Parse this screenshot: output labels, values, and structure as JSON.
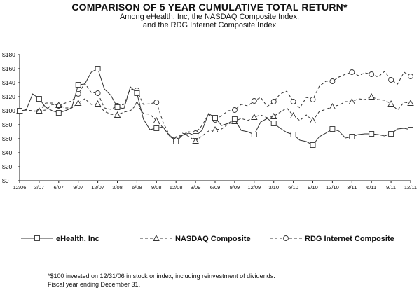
{
  "title": "COMPARISON OF 5 YEAR CUMULATIVE TOTAL RETURN*",
  "subtitle_line1": "Among eHealth, Inc, the NASDAQ Composite Index,",
  "subtitle_line2": "and the RDG Internet Composite Index",
  "footnote_line1": "*$100 invested on 12/31/06 in stock or index, including reinvestment of dividends.",
  "footnote_line2": "Fiscal year ending December 31.",
  "chart_data": {
    "type": "line",
    "title": "COMPARISON OF 5 YEAR CUMULATIVE TOTAL RETURN*",
    "xlabel": "",
    "ylabel": "",
    "ylim": [
      0,
      180
    ],
    "y_ticks": [
      "$0",
      "$20",
      "$40",
      "$60",
      "$80",
      "$100",
      "$120",
      "$140",
      "$160",
      "$180"
    ],
    "x_ticks": [
      "12/06",
      "3/07",
      "6/07",
      "9/07",
      "12/07",
      "3/08",
      "6/08",
      "9/08",
      "12/08",
      "3/09",
      "6/09",
      "9/09",
      "12/09",
      "3/10",
      "6/10",
      "9/10",
      "12/10",
      "3/11",
      "6/11",
      "9/11",
      "12/11"
    ],
    "grid": false,
    "legend_position": "bottom",
    "months": 60,
    "series": [
      {
        "name": "eHealth, Inc",
        "style": "solid",
        "marker": "square",
        "values": [
          100,
          101,
          124,
          117,
          105,
          100,
          97,
          100,
          104,
          137,
          138,
          155,
          160,
          131,
          122,
          105,
          103,
          134,
          125,
          88,
          73,
          75,
          77,
          64,
          56,
          65,
          68,
          64,
          72,
          96,
          90,
          79,
          82,
          88,
          72,
          70,
          66,
          84,
          89,
          82,
          75,
          69,
          66,
          58,
          56,
          51,
          63,
          68,
          74,
          71,
          61,
          63,
          66,
          67,
          67,
          66,
          64,
          67,
          74,
          75,
          73
        ]
      },
      {
        "name": "NASDAQ Composite",
        "style": "dashed",
        "marker": "triangle",
        "values": [
          100,
          102,
          99,
          100,
          101,
          109,
          108,
          104,
          104,
          111,
          117,
          109,
          110,
          99,
          95,
          94,
          98,
          100,
          109,
          96,
          95,
          86,
          76,
          65,
          59,
          68,
          63,
          57,
          64,
          71,
          73,
          74,
          81,
          85,
          89,
          86,
          91,
          94,
          90,
          92,
          98,
          104,
          93,
          86,
          94,
          86,
          99,
          102,
          106,
          108,
          113,
          113,
          117,
          116,
          120,
          116,
          115,
          110,
          101,
          112,
          111
        ]
      },
      {
        "name": "RDG Internet Composite",
        "style": "dashed",
        "marker": "circle",
        "values": [
          100,
          101,
          100,
          99,
          111,
          111,
          107,
          111,
          114,
          124,
          139,
          126,
          125,
          104,
          102,
          107,
          109,
          131,
          129,
          109,
          110,
          112,
          84,
          65,
          58,
          66,
          70,
          68,
          79,
          95,
          87,
          93,
          100,
          101,
          109,
          107,
          114,
          119,
          106,
          113,
          124,
          128,
          113,
          104,
          119,
          116,
          135,
          142,
          142,
          148,
          152,
          155,
          150,
          154,
          152,
          148,
          156,
          144,
          138,
          155,
          149
        ]
      }
    ]
  },
  "legend": [
    {
      "label": "eHealth, Inc",
      "marker": "square",
      "style": "solid"
    },
    {
      "label": "NASDAQ Composite",
      "marker": "triangle",
      "style": "dashed"
    },
    {
      "label": "RDG Internet Composite",
      "marker": "circle",
      "style": "dashed"
    }
  ]
}
